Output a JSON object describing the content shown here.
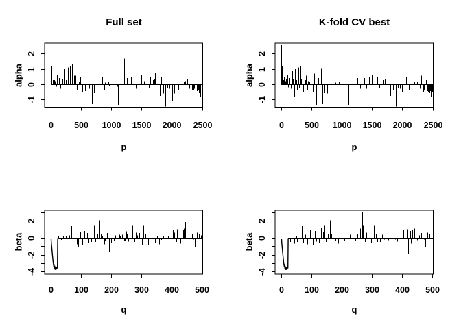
{
  "canvas": {
    "background": "#ffffff",
    "ink": "#000000"
  },
  "chart_data": {
    "type": "line",
    "style": "impulse-like line plots (R base graphics), 2x2 panel grid; left and right columns show identical coefficient profiles",
    "panels": [
      {
        "pos": "top-left",
        "row": "alpha",
        "title": "Full set",
        "xlabel": "p",
        "ylabel": "alpha",
        "xticks": [
          0,
          500,
          1000,
          1500,
          2000,
          2500
        ],
        "yticks": [
          {
            "v": -1,
            "label": "-1"
          },
          {
            "v": 0,
            "label": "0"
          },
          {
            "v": 1,
            "label": "1"
          },
          {
            "v": 2,
            "label": "2"
          }
        ],
        "xlim": [
          -102,
          2512
        ],
        "ylim": [
          -1.49,
          2.71
        ],
        "grid": false,
        "legend": "none",
        "series": "alpha",
        "zero_span": [
          0,
          2505
        ]
      },
      {
        "pos": "top-right",
        "row": "alpha",
        "title": "K-fold CV best",
        "xlabel": "p",
        "ylabel": "alpha",
        "xticks": [
          0,
          500,
          1000,
          1500,
          2000,
          2500
        ],
        "yticks": [
          {
            "v": -1,
            "label": "-1"
          },
          {
            "v": 0,
            "label": "0"
          },
          {
            "v": 1,
            "label": "1"
          },
          {
            "v": 2,
            "label": "2"
          }
        ],
        "xlim": [
          -102,
          2512
        ],
        "ylim": [
          -1.49,
          2.71
        ],
        "grid": false,
        "legend": "none",
        "series": "alpha",
        "zero_span": [
          0,
          2505
        ]
      },
      {
        "pos": "bottom-left",
        "row": "beta",
        "title": "",
        "xlabel": "q",
        "ylabel": "beta",
        "xticks": [
          0,
          100,
          200,
          300,
          400,
          500
        ],
        "yticks": [
          {
            "v": -4,
            "label": "-4"
          },
          {
            "v": -3,
            "label": ""
          },
          {
            "v": -2,
            "label": "-2"
          },
          {
            "v": -1,
            "label": ""
          },
          {
            "v": 0,
            "label": "0"
          },
          {
            "v": 1,
            "label": ""
          },
          {
            "v": 2,
            "label": "2"
          },
          {
            "v": 3,
            "label": ""
          }
        ],
        "xlim": [
          -21,
          506
        ],
        "ylim": [
          -4.29,
          3.24
        ],
        "grid": false,
        "legend": "none",
        "series": "beta",
        "zero_span": [
          23,
          504
        ]
      },
      {
        "pos": "bottom-right",
        "row": "beta",
        "title": "",
        "xlabel": "q",
        "ylabel": "beta",
        "xticks": [
          0,
          100,
          200,
          300,
          400,
          500
        ],
        "yticks": [
          {
            "v": -4,
            "label": "-4"
          },
          {
            "v": -3,
            "label": ""
          },
          {
            "v": -2,
            "label": "-2"
          },
          {
            "v": -1,
            "label": ""
          },
          {
            "v": 0,
            "label": "0"
          },
          {
            "v": 1,
            "label": ""
          },
          {
            "v": 2,
            "label": "2"
          },
          {
            "v": 3,
            "label": ""
          }
        ],
        "xlim": [
          -21,
          506
        ],
        "ylim": [
          -4.29,
          3.24
        ],
        "grid": false,
        "legend": "none",
        "series": "beta",
        "zero_span": [
          23,
          504
        ]
      }
    ],
    "series": {
      "alpha": {
        "impulses": [
          [
            0,
            2.55
          ],
          [
            8,
            1.2
          ],
          [
            30,
            0.3
          ],
          [
            42,
            0.45
          ],
          [
            55,
            0.3
          ],
          [
            68,
            0.2
          ],
          [
            80,
            0.35
          ],
          [
            92,
            -0.15
          ],
          [
            105,
            0.6
          ],
          [
            118,
            -0.2
          ],
          [
            140,
            0.4
          ],
          [
            158,
            -0.3
          ],
          [
            178,
            0.85
          ],
          [
            196,
            0.35
          ],
          [
            210,
            -0.8
          ],
          [
            228,
            1.0
          ],
          [
            246,
            0.3
          ],
          [
            258,
            -0.35
          ],
          [
            278,
            1.1
          ],
          [
            297,
            -0.25
          ],
          [
            318,
            1.2
          ],
          [
            334,
            0.35
          ],
          [
            348,
            1.35
          ],
          [
            365,
            -0.5
          ],
          [
            380,
            0.45
          ],
          [
            391,
            0.55
          ],
          [
            400,
            0.3
          ],
          [
            413,
            0.55
          ],
          [
            430,
            -0.4
          ],
          [
            447,
            0.2
          ],
          [
            468,
            0.15
          ],
          [
            490,
            0.5
          ],
          [
            520,
            -0.5
          ],
          [
            548,
            0.7
          ],
          [
            562,
            -0.45
          ],
          [
            575,
            -1.35
          ],
          [
            613,
            0.4
          ],
          [
            635,
            -0.3
          ],
          [
            660,
            1.05
          ],
          [
            680,
            -1.3
          ],
          [
            710,
            -0.55
          ],
          [
            765,
            -0.6
          ],
          [
            855,
            0.45
          ],
          [
            880,
            -0.4
          ],
          [
            896,
            0.12
          ],
          [
            950,
            0.15
          ],
          [
            963,
            -0.12
          ],
          [
            1098,
            -0.15
          ],
          [
            1115,
            -1.33
          ],
          [
            1210,
            1.68
          ],
          [
            1262,
            0.4
          ],
          [
            1300,
            -0.3
          ],
          [
            1325,
            0.48
          ],
          [
            1367,
            0.4
          ],
          [
            1410,
            -0.3
          ],
          [
            1450,
            0.48
          ],
          [
            1492,
            0.6
          ],
          [
            1540,
            0.2
          ],
          [
            1584,
            0.45
          ],
          [
            1620,
            -0.25
          ],
          [
            1648,
            0.5
          ],
          [
            1690,
            0.3
          ],
          [
            1712,
            0.35
          ],
          [
            1722,
            0.75
          ],
          [
            1800,
            -0.75
          ],
          [
            1830,
            0.5
          ],
          [
            1848,
            -0.4
          ],
          [
            1862,
            -0.6
          ],
          [
            1896,
            -1.45
          ],
          [
            1930,
            -0.25
          ],
          [
            1958,
            -0.3
          ],
          [
            2000,
            -0.5
          ],
          [
            2012,
            -1.1
          ],
          [
            2036,
            -0.6
          ],
          [
            2067,
            0.45
          ],
          [
            2105,
            -0.4
          ],
          [
            2200,
            0.15
          ],
          [
            2218,
            0.2
          ],
          [
            2240,
            0.15
          ],
          [
            2258,
            0.35
          ],
          [
            2288,
            -0.3
          ],
          [
            2315,
            0.55
          ],
          [
            2334,
            -0.35
          ],
          [
            2346,
            -0.5
          ],
          [
            2360,
            -0.35
          ],
          [
            2372,
            -0.3
          ],
          [
            2391,
            0.3
          ],
          [
            2412,
            -0.45
          ],
          [
            2424,
            -0.5
          ],
          [
            2436,
            -0.4
          ],
          [
            2448,
            -0.55
          ],
          [
            2458,
            -0.45
          ],
          [
            2474,
            -0.85
          ],
          [
            2497,
            -0.5
          ],
          [
            2505,
            -0.45
          ]
        ]
      },
      "beta": {
        "path": [
          [
            1,
            -0.1
          ],
          [
            2,
            -0.7
          ],
          [
            4,
            -1.5
          ],
          [
            6,
            -2.2
          ],
          [
            8,
            -2.9
          ],
          [
            10,
            -3.4
          ],
          [
            11,
            -3.1
          ],
          [
            12,
            -3.65
          ],
          [
            13,
            -3.3
          ],
          [
            14,
            -3.75
          ],
          [
            15,
            -3.45
          ],
          [
            16,
            -3.8
          ],
          [
            17,
            -3.5
          ],
          [
            18,
            -3.75
          ],
          [
            19,
            -3.45
          ],
          [
            20,
            -3.7
          ],
          [
            21,
            -3.4
          ],
          [
            22,
            -3.6
          ],
          [
            23,
            -0.05
          ]
        ],
        "impulses": [
          [
            26,
            0.25
          ],
          [
            29,
            -0.5
          ],
          [
            34,
            -0.25
          ],
          [
            40,
            0.15
          ],
          [
            44,
            -0.7
          ],
          [
            49,
            0.2
          ],
          [
            53,
            -0.5
          ],
          [
            61,
            0.3
          ],
          [
            69,
            1.45
          ],
          [
            73,
            -0.55
          ],
          [
            79,
            0.35
          ],
          [
            86,
            -0.75
          ],
          [
            90,
            -1.05
          ],
          [
            96,
            0.9
          ],
          [
            99,
            0.65
          ],
          [
            105,
            -0.9
          ],
          [
            112,
            0.8
          ],
          [
            117,
            -0.45
          ],
          [
            121,
            0.55
          ],
          [
            125,
            -0.65
          ],
          [
            131,
            1.15
          ],
          [
            135,
            -0.5
          ],
          [
            140,
            0.7
          ],
          [
            144,
            1.5
          ],
          [
            148,
            -0.5
          ],
          [
            155,
            0.4
          ],
          [
            161,
            2.05
          ],
          [
            166,
            0.5
          ],
          [
            171,
            0.25
          ],
          [
            177,
            -0.75
          ],
          [
            181,
            -0.4
          ],
          [
            186,
            0.55
          ],
          [
            190,
            -0.7
          ],
          [
            194,
            -1.6
          ],
          [
            200,
            -0.6
          ],
          [
            209,
            -0.35
          ],
          [
            215,
            0.3
          ],
          [
            227,
            0.35
          ],
          [
            231,
            0.25
          ],
          [
            238,
            0.35
          ],
          [
            243,
            -0.4
          ],
          [
            247,
            -0.35
          ],
          [
            250,
            0.75
          ],
          [
            253,
            0.5
          ],
          [
            257,
            -0.45
          ],
          [
            261,
            1.1
          ],
          [
            269,
            3.05
          ],
          [
            272,
            1.5
          ],
          [
            278,
            -0.5
          ],
          [
            282,
            0.6
          ],
          [
            286,
            0.3
          ],
          [
            293,
            0.55
          ],
          [
            298,
            -0.55
          ],
          [
            302,
            -0.9
          ],
          [
            308,
            1.5
          ],
          [
            314,
            0.5
          ],
          [
            318,
            -0.5
          ],
          [
            323,
            -0.9
          ],
          [
            328,
            -0.5
          ],
          [
            335,
            0.35
          ],
          [
            341,
            -0.2
          ],
          [
            347,
            -0.55
          ],
          [
            352,
            0.25
          ],
          [
            356,
            -0.3
          ],
          [
            361,
            -0.75
          ],
          [
            367,
            -0.25
          ],
          [
            373,
            0.2
          ],
          [
            378,
            -0.2
          ],
          [
            384,
            -0.45
          ],
          [
            390,
            0.15
          ],
          [
            405,
            0.9
          ],
          [
            411,
            0.6
          ],
          [
            416,
            -0.5
          ],
          [
            420,
            1.0
          ],
          [
            422,
            -1.95
          ],
          [
            428,
            0.8
          ],
          [
            431,
            -0.7
          ],
          [
            435,
            0.9
          ],
          [
            440,
            0.9
          ],
          [
            443,
            1.1
          ],
          [
            446,
            1.85
          ],
          [
            451,
            -0.3
          ],
          [
            458,
            0.3
          ],
          [
            464,
            0.55
          ],
          [
            470,
            0.45
          ],
          [
            474,
            -0.2
          ],
          [
            479,
            -1.05
          ],
          [
            485,
            0.6
          ],
          [
            492,
            0.4
          ],
          [
            498,
            0.3
          ],
          [
            503,
            0.75
          ],
          [
            504,
            -0.2
          ]
        ]
      }
    }
  }
}
